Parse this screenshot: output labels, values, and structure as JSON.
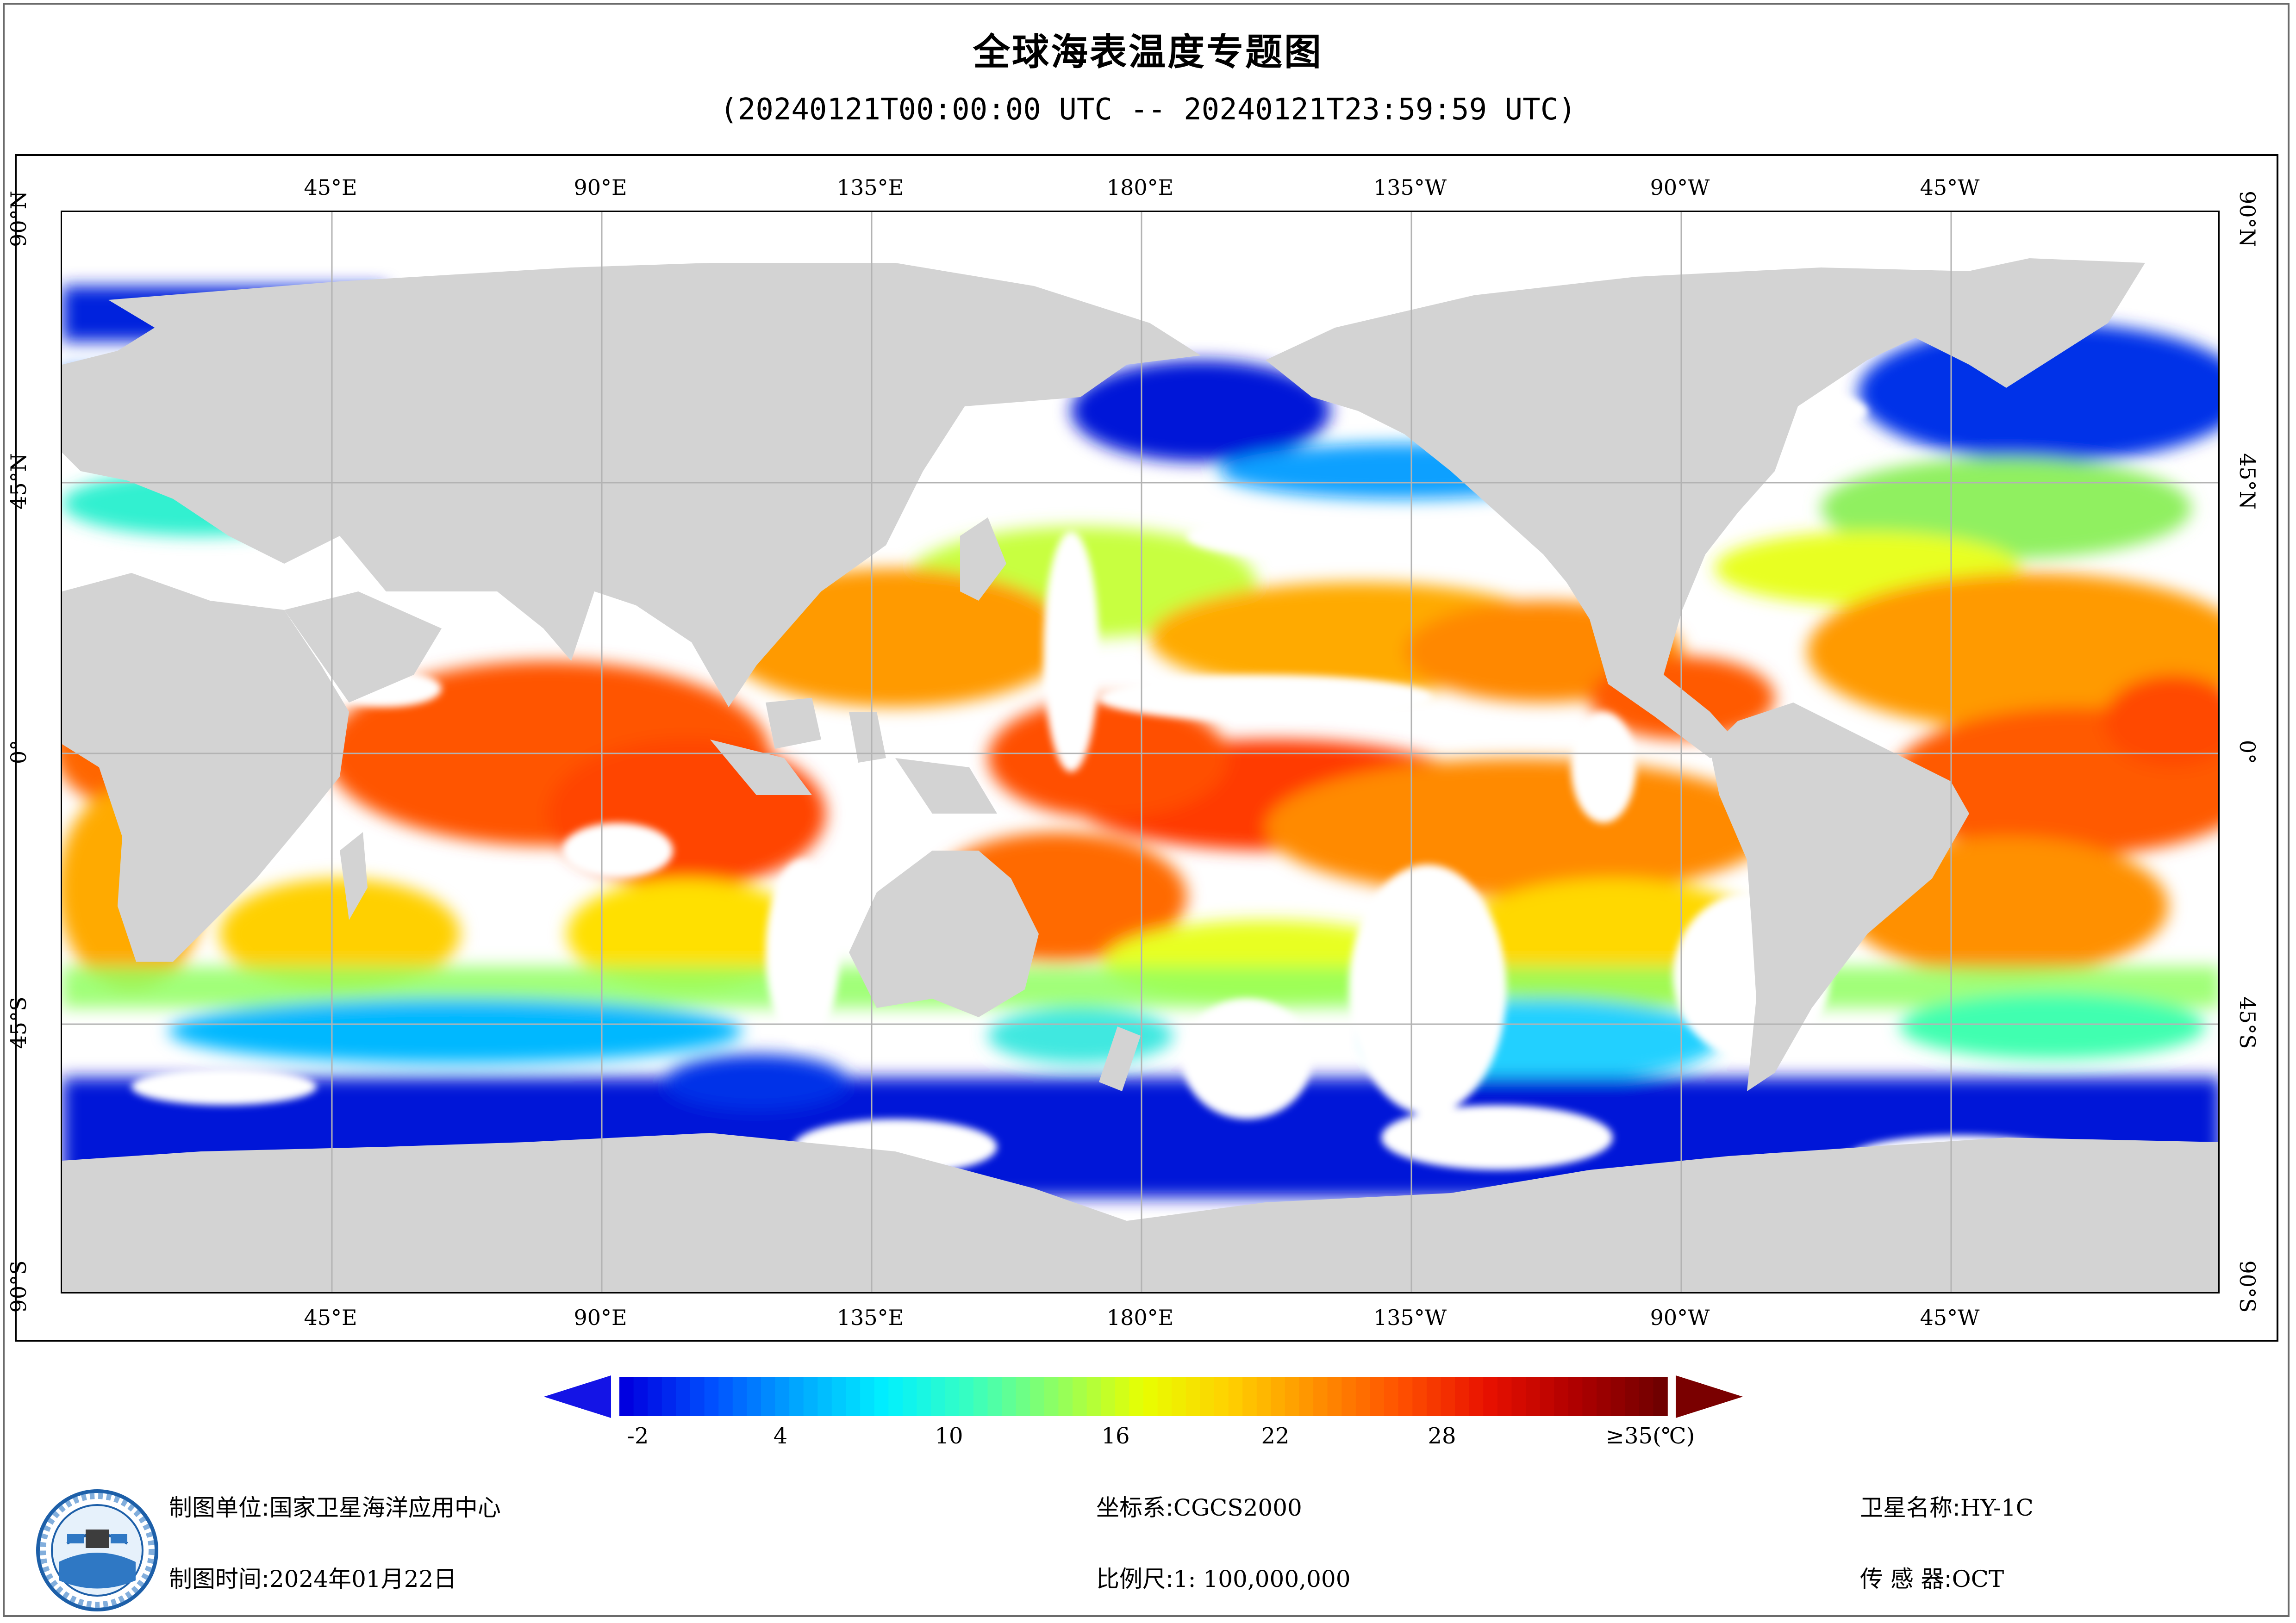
{
  "header": {
    "title": "全球海表温度专题图",
    "subtitle": "(20240121T00:00:00 UTC -- 20240121T23:59:59 UTC)"
  },
  "map": {
    "lon_labels": [
      "45°E",
      "90°E",
      "135°E",
      "180°E",
      "135°W",
      "90°W",
      "45°W"
    ],
    "lat_labels": [
      "90°N",
      "45°N",
      "0°",
      "45°S",
      "90°S"
    ],
    "land_color": "#d3d3d3",
    "no_data_color": "#ffffff",
    "grid_color": "#b3b3b3"
  },
  "colorbar": {
    "tick_labels": [
      "-2",
      "4",
      "10",
      "16",
      "22",
      "28",
      "≥35(℃)"
    ],
    "range": [
      -2,
      35
    ],
    "colors": [
      "#0000e0",
      "#0050ff",
      "#00a8ff",
      "#00f0ff",
      "#38ffc0",
      "#90ff60",
      "#e8ff00",
      "#ffd000",
      "#ff9000",
      "#ff5000",
      "#e81000",
      "#b00000",
      "#700000"
    ]
  },
  "footer": {
    "org_label": "制图单位:",
    "org_value": "国家卫星海洋应用中心",
    "date_label": "制图时间:",
    "date_value": "2024年01月22日",
    "crs_label": "坐标系:",
    "crs_value": "CGCS2000",
    "scale_label": "比例尺:",
    "scale_value": "1: 100,000,000",
    "sat_label": "卫星名称:",
    "sat_value": "HY-1C",
    "sensor_label": "传 感 器:",
    "sensor_value": "OCT"
  }
}
